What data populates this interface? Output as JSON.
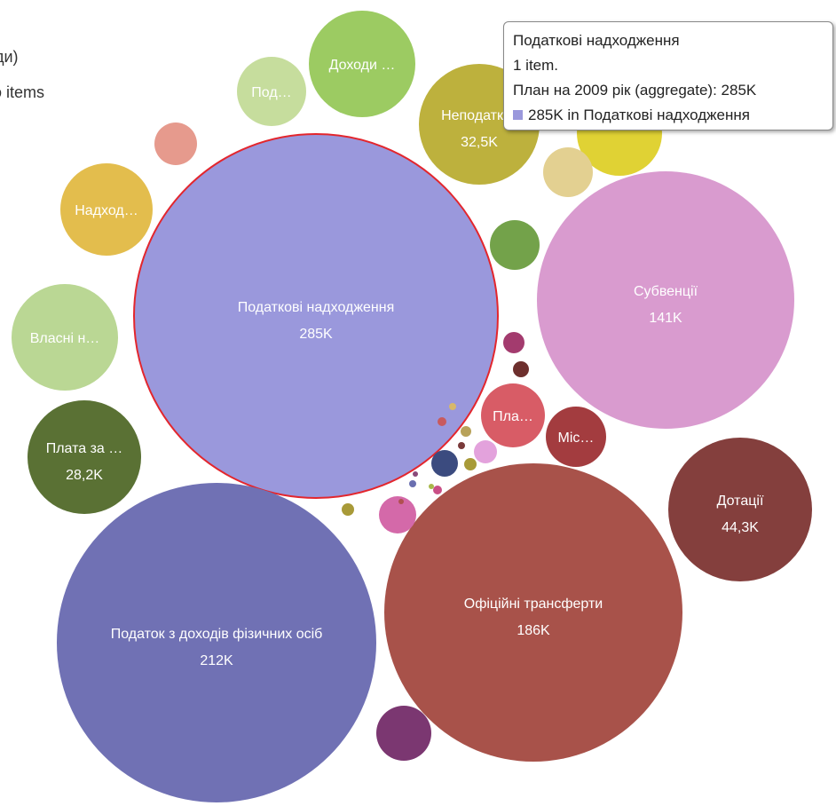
{
  "legend": {
    "line1": "ди)",
    "line2": "o items"
  },
  "tooltip": {
    "title": "Податкові надходження",
    "count": "1 item.",
    "aggregate": "План на 2009 рік (aggregate): 285K",
    "entry": "285K in Податкові надходження",
    "swatch_color": "#9a98dc"
  },
  "chart_data": {
    "type": "bubble",
    "metric": "План на 2009 рік",
    "selected": "Податкові надходження",
    "selected_outline_color": "#e3262d",
    "bubbles": [
      {
        "label": "Податкові надходження",
        "value_label": "285K",
        "value": 285000,
        "color": "#9a98dc"
      },
      {
        "label": "Податок з доходів фізичних осіб",
        "value_label": "212K",
        "value": 212000,
        "color": "#7071b4"
      },
      {
        "label": "Офіційні трансферти",
        "value_label": "186K",
        "value": 186000,
        "color": "#a8524a"
      },
      {
        "label": "Субвенції",
        "value_label": "141K",
        "value": 141000,
        "color": "#d99bcf"
      },
      {
        "label": "Дотації",
        "value_label": "44,3K",
        "value": 44300,
        "color": "#843f3d"
      },
      {
        "label": "Неподатк…",
        "value_label": "32,5K",
        "value": 32500,
        "color": "#bdb13d"
      },
      {
        "label": "Плата за …",
        "value_label": "28,2K",
        "value": 28200,
        "color": "#5a7134"
      },
      {
        "label": "Власні н…",
        "value_label": "",
        "value": null,
        "color": "#bad794"
      },
      {
        "label": "Надход…",
        "value_label": "",
        "value": null,
        "color": "#e3bd4d"
      },
      {
        "label": "Доходи …",
        "value_label": "",
        "value": null,
        "color": "#9ccb62"
      },
      {
        "label": "Под…",
        "value_label": "",
        "value": null,
        "color": "#c6dd9d"
      },
      {
        "label": "Пла…",
        "value_label": "",
        "value": null,
        "color": "#d85c66"
      },
      {
        "label": "Міс…",
        "value_label": "",
        "value": null,
        "color": "#a33c3f"
      },
      {
        "label": "",
        "value_label": "",
        "value": null,
        "color": "#e0d234"
      },
      {
        "label": "",
        "value_label": "",
        "value": null,
        "color": "#e3d091"
      },
      {
        "label": "",
        "value_label": "",
        "value": null,
        "color": "#73a24a"
      },
      {
        "label": "",
        "value_label": "",
        "value": null,
        "color": "#e69a8d"
      },
      {
        "label": "",
        "value_label": "",
        "value": null,
        "color": "#7b3771"
      },
      {
        "label": "",
        "value_label": "",
        "value": null,
        "color": "#d469a9"
      },
      {
        "label": "",
        "value_label": "",
        "value": null,
        "color": "#e3a2dc"
      },
      {
        "label": "",
        "value_label": "",
        "value": null,
        "color": "#3b4b7f"
      },
      {
        "label": "",
        "value_label": "",
        "value": null,
        "color": "#a33b6e"
      },
      {
        "label": "",
        "value_label": "",
        "value": null,
        "color": "#6d2f2d"
      },
      {
        "label": "",
        "value_label": "",
        "value": null,
        "color": "#a89a38"
      },
      {
        "label": "",
        "value_label": "",
        "value": null,
        "color": "#a89a38"
      },
      {
        "label": "",
        "value_label": "",
        "value": null,
        "color": "#b8a25a"
      },
      {
        "label": "",
        "value_label": "",
        "value": null,
        "color": "#c85a5e"
      },
      {
        "label": "",
        "value_label": "",
        "value": null,
        "color": "#d7b86a"
      },
      {
        "label": "",
        "value_label": "",
        "value": null,
        "color": "#6a6fb0"
      },
      {
        "label": "",
        "value_label": "",
        "value": null,
        "color": "#c94f86"
      },
      {
        "label": "",
        "value_label": "",
        "value": null,
        "color": "#7a3a3a"
      },
      {
        "label": "",
        "value_label": "",
        "value": null,
        "color": "#a8b84a"
      },
      {
        "label": "",
        "value_label": "",
        "value": null,
        "color": "#8a4a7a"
      },
      {
        "label": "",
        "value_label": "",
        "value": null,
        "color": "#b05050"
      }
    ]
  }
}
